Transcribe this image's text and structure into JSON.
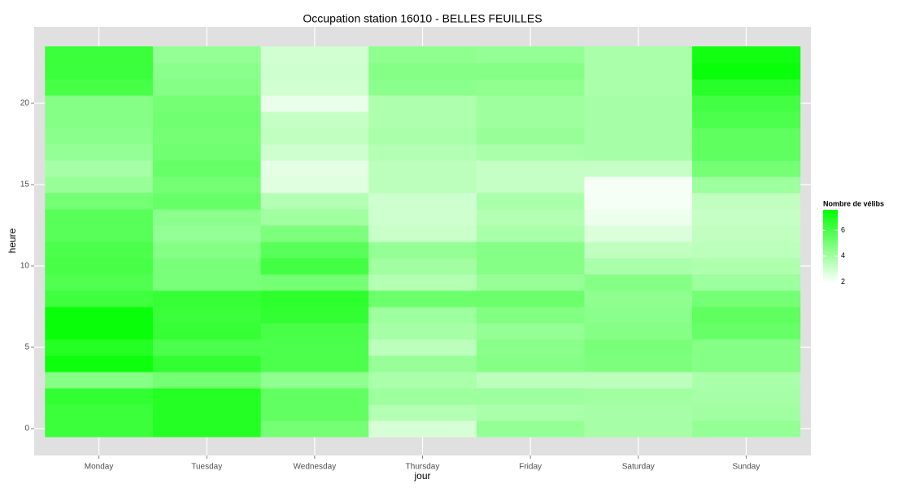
{
  "chart_data": {
    "type": "heatmap",
    "title": "Occupation station 16010 - BELLES FEUILLES",
    "xlabel": "jour",
    "ylabel": "heure",
    "x": [
      "Monday",
      "Tuesday",
      "Wednesday",
      "Thursday",
      "Friday",
      "Saturday",
      "Sunday"
    ],
    "y": [
      0,
      1,
      2,
      3,
      4,
      5,
      6,
      7,
      8,
      9,
      10,
      11,
      12,
      13,
      14,
      15,
      16,
      17,
      18,
      19,
      20,
      21,
      22,
      23
    ],
    "values": [
      [
        6.3,
        6.3,
        6.5,
        4.6,
        7.3,
        6.8,
        7.4,
        7.4,
        6.2,
        5.8,
        6.0,
        5.9,
        5.6,
        5.6,
        5.0,
        4.2,
        3.9,
        4.3,
        4.5,
        4.6,
        4.6,
        6.0,
        6.3,
        6.3
      ],
      [
        6.8,
        6.8,
        6.8,
        5.0,
        6.5,
        5.9,
        6.4,
        6.3,
        6.4,
        4.9,
        4.9,
        4.6,
        4.3,
        4.5,
        5.3,
        5.0,
        5.3,
        5.1,
        5.0,
        5.1,
        5.0,
        4.6,
        4.5,
        4.3
      ],
      [
        5.0,
        5.4,
        5.4,
        4.4,
        5.9,
        5.9,
        6.0,
        6.5,
        6.6,
        5.0,
        6.1,
        5.6,
        4.8,
        4.0,
        3.6,
        2.6,
        2.5,
        3.0,
        3.3,
        3.2,
        2.4,
        2.9,
        3.0,
        2.9
      ],
      [
        2.8,
        3.6,
        4.1,
        3.8,
        4.2,
        3.4,
        3.9,
        4.1,
        5.2,
        3.6,
        4.0,
        4.3,
        3.1,
        3.0,
        3.0,
        3.4,
        3.4,
        3.6,
        3.8,
        3.7,
        3.7,
        4.5,
        4.6,
        4.4
      ],
      [
        4.3,
        3.8,
        4.1,
        3.4,
        4.6,
        4.5,
        4.3,
        4.7,
        5.2,
        4.2,
        4.6,
        4.6,
        3.8,
        3.6,
        3.8,
        3.2,
        3.2,
        3.8,
        4.2,
        4.1,
        4.1,
        4.4,
        4.6,
        4.3
      ],
      [
        3.9,
        3.9,
        4.0,
        3.4,
        4.8,
        4.9,
        4.6,
        4.5,
        4.4,
        4.6,
        3.8,
        3.3,
        2.7,
        2.3,
        2.1,
        2.1,
        3.2,
        3.9,
        3.9,
        3.9,
        3.9,
        3.8,
        3.8,
        3.8
      ],
      [
        4.3,
        4.0,
        3.9,
        3.8,
        4.6,
        4.6,
        5.3,
        5.5,
        5.0,
        4.1,
        3.7,
        3.4,
        3.3,
        3.2,
        3.3,
        4.1,
        5.0,
        5.5,
        5.5,
        5.9,
        6.1,
        6.7,
        7.4,
        7.2
      ]
    ],
    "ylim": [
      -1.65,
      24.7
    ],
    "yticks": [
      0,
      5,
      10,
      15,
      20
    ],
    "grid": true,
    "legend_title": "Nombre de vélibs",
    "clim": [
      1.9,
      7.6
    ],
    "cticks": [
      2,
      4,
      6
    ],
    "color_low": "#ffffff",
    "color_high": "#00ff00"
  }
}
